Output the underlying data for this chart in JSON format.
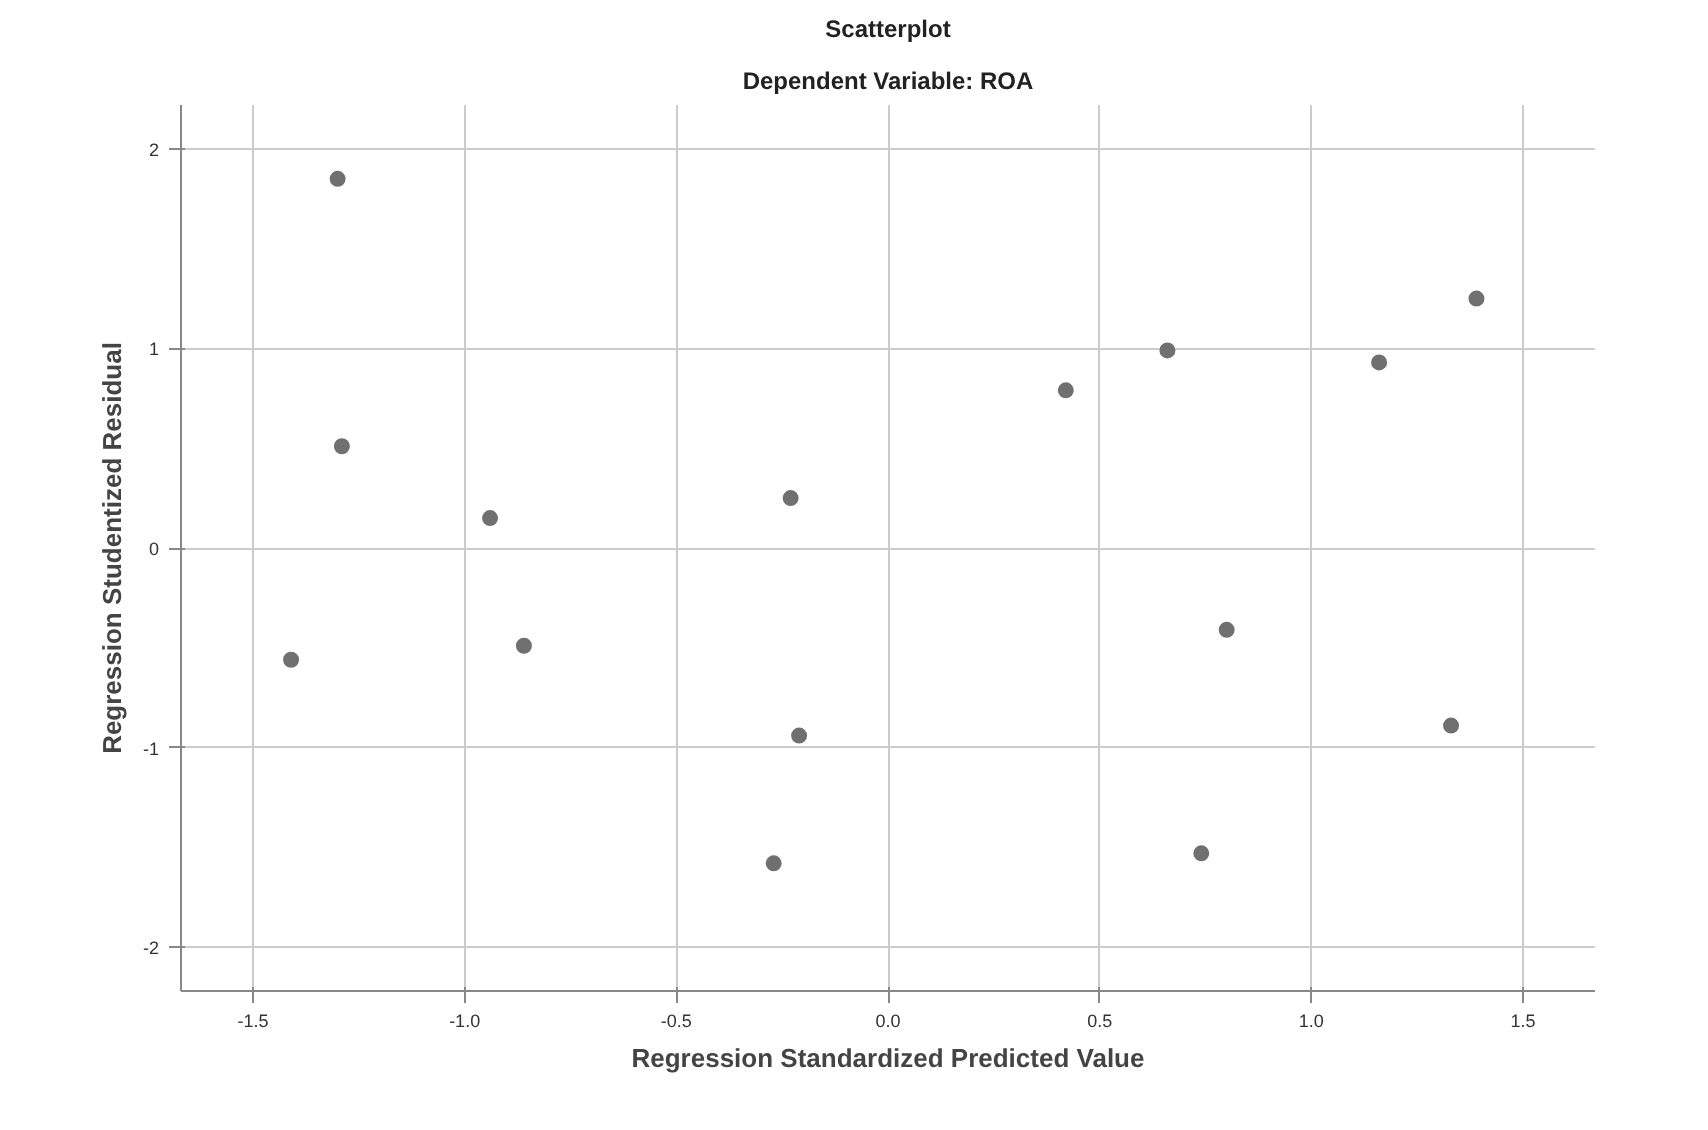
{
  "chart_data": {
    "type": "scatter",
    "title": "Scatterplot",
    "subtitle": "Dependent Variable: ROA",
    "xlabel": "Regression Standardized Predicted Value",
    "ylabel": "Regression Studentized Residual",
    "x": [
      -1.3,
      -1.29,
      -1.41,
      -0.94,
      -0.86,
      -0.23,
      -0.21,
      -0.27,
      0.42,
      0.66,
      0.8,
      0.74,
      1.16,
      1.39,
      1.33
    ],
    "values": [
      1.85,
      0.51,
      -0.56,
      0.15,
      -0.49,
      0.25,
      -0.94,
      -1.58,
      0.79,
      0.99,
      -0.41,
      -1.53,
      0.93,
      1.25,
      -0.89
    ],
    "color": "#707070",
    "marker": "circle",
    "xlim": [
      -1.67,
      1.67
    ],
    "ylim": [
      -2.22,
      2.22
    ],
    "xticks": [
      {
        "value": -1.5,
        "label": "-1.5"
      },
      {
        "value": -1.0,
        "label": "-1.0"
      },
      {
        "value": -0.5,
        "label": "-0.5"
      },
      {
        "value": 0.0,
        "label": "0.0"
      },
      {
        "value": 0.5,
        "label": "0.5"
      },
      {
        "value": 1.0,
        "label": "1.0"
      },
      {
        "value": 1.5,
        "label": "1.5"
      }
    ],
    "yticks": [
      -2,
      -1,
      0,
      1,
      2
    ],
    "grid": true
  }
}
